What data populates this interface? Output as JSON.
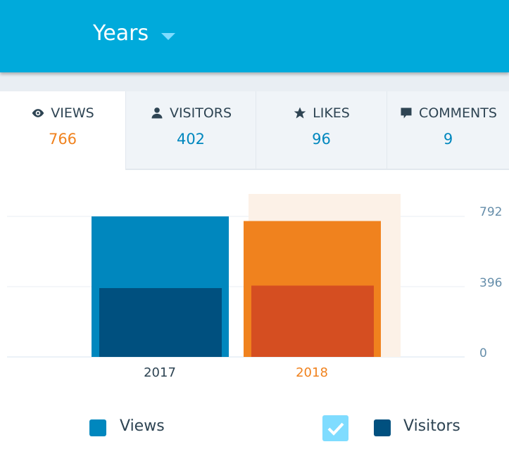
{
  "header": {
    "period_label": "Years"
  },
  "tabs": [
    {
      "label": "VIEWS",
      "value": "766",
      "icon": "eye-icon",
      "active": true
    },
    {
      "label": "VISITORS",
      "value": "402",
      "icon": "person-icon",
      "active": false
    },
    {
      "label": "LIKES",
      "value": "96",
      "icon": "star-icon",
      "active": false
    },
    {
      "label": "COMMENTS",
      "value": "9",
      "icon": "comment-icon",
      "active": false
    }
  ],
  "legend": {
    "views": "Views",
    "visitors": "Visitors",
    "visitors_checked": true
  },
  "colors": {
    "views": "#0087be",
    "visitors": "#00507f",
    "views_selected": "#f0821e",
    "visitors_selected": "#d54e21",
    "highlight": "#fcf1e7"
  },
  "chart_data": {
    "type": "bar",
    "categories": [
      "2017",
      "2018"
    ],
    "selected_category": "2018",
    "series": [
      {
        "name": "Views",
        "values": [
          792,
          766
        ]
      },
      {
        "name": "Visitors",
        "values": [
          388,
          402
        ]
      }
    ],
    "yticks": [
      "0",
      "396",
      "792"
    ],
    "ylim": [
      0,
      792
    ],
    "grid": true,
    "legend_position": "bottom"
  }
}
